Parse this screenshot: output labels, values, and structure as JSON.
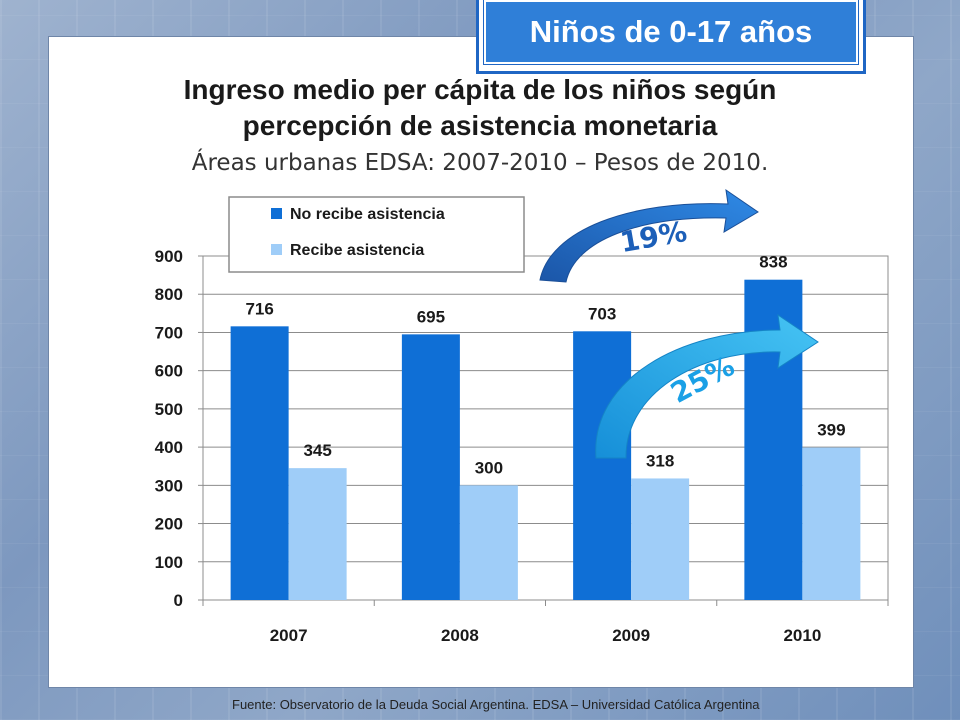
{
  "badge": {
    "text": "Niños de 0-17 años"
  },
  "header": {
    "title_line1": "Ingreso medio per cápita de los niños según",
    "title_line2": "percepción de asistencia monetaria",
    "subtitle": "Áreas urbanas EDSA: 2007-2010 – Pesos de 2010."
  },
  "source": "Fuente: Observatorio de la Deuda Social Argentina. EDSA – Universidad Católica Argentina",
  "chart_data": {
    "type": "bar",
    "categories": [
      "2007",
      "2008",
      "2009",
      "2010"
    ],
    "series": [
      {
        "name": "No recibe asistencia",
        "values": [
          716,
          695,
          703,
          838
        ],
        "color": "#0f6fd6"
      },
      {
        "name": "Recibe asistencia",
        "values": [
          345,
          300,
          318,
          399
        ],
        "color": "#9fcdf8"
      }
    ],
    "ylim": [
      0,
      900
    ],
    "yticks": [
      0,
      100,
      200,
      300,
      400,
      500,
      600,
      700,
      800,
      900
    ],
    "grid": true,
    "legend_position": "top-left",
    "annotations": [
      {
        "text": "19%",
        "color": "#1c5fb8"
      },
      {
        "text": "25%",
        "color": "#1aa0e6"
      }
    ]
  }
}
